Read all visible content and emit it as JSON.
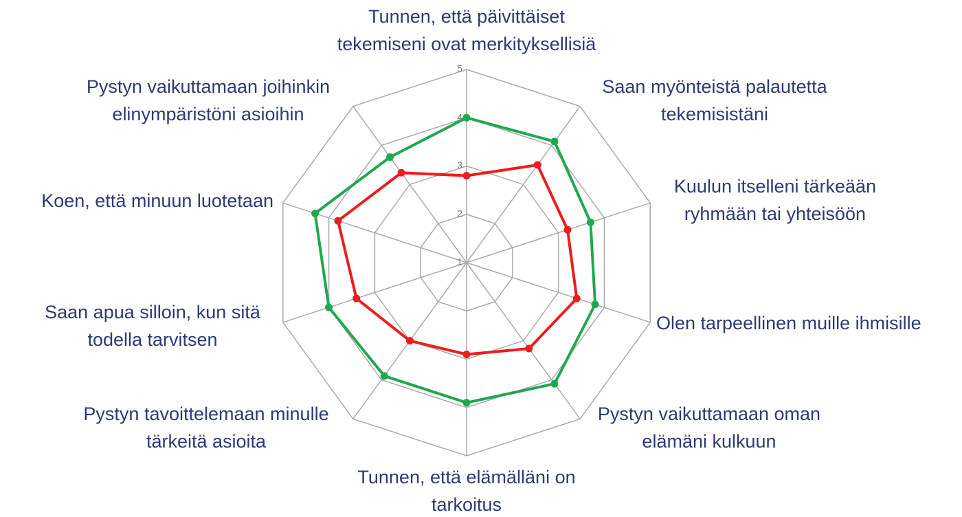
{
  "chart_data": {
    "type": "radar",
    "categories": [
      "Tunnen, että päivittäiset tekemiseni ovat merkityksellisiä",
      "Saan myönteistä palautetta tekemisistäni",
      "Kuulun itselleni tärkeään ryhmään tai yhteisöön",
      "Olen tarpeellinen muille ihmisille",
      "Pystyn vaikuttamaan oman elämäni kulkuun",
      "Tunnen, että elämälläni on tarkoitus",
      "Pystyn tavoittelemaan minulle tärkeitä asioita",
      "Saan apua silloin, kun sitä todella tarvitsen",
      "Koen, että minuun luotetaan",
      "Pystyn vaikuttamaan joihinkin elinympäristöni asioihin"
    ],
    "series": [
      {
        "color": "#20a84e",
        "values": [
          4.0,
          4.1,
          3.7,
          3.8,
          4.1,
          3.9,
          3.9,
          4.0,
          4.3,
          3.7
        ]
      },
      {
        "color": "#ee1c1c",
        "values": [
          2.8,
          3.5,
          3.2,
          3.4,
          3.2,
          2.9,
          3.0,
          3.4,
          3.8,
          3.3
        ]
      }
    ],
    "ylim": [
      1,
      5
    ],
    "yticks": [
      1,
      2,
      3,
      4,
      5
    ],
    "grid": true
  }
}
